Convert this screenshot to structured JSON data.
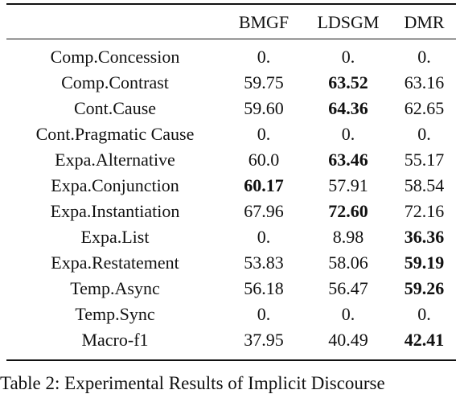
{
  "table": {
    "headers": [
      "",
      "BMGF",
      "LDSGM",
      "DMR"
    ],
    "rows": [
      {
        "label": "Comp.Concession",
        "values": [
          "0.",
          "0.",
          "0."
        ],
        "bold": -1
      },
      {
        "label": "Comp.Contrast",
        "values": [
          "59.75",
          "63.52",
          "63.16"
        ],
        "bold": 1
      },
      {
        "label": "Cont.Cause",
        "values": [
          "59.60",
          "64.36",
          "62.65"
        ],
        "bold": 1
      },
      {
        "label": "Cont.Pragmatic Cause",
        "values": [
          "0.",
          "0.",
          "0."
        ],
        "bold": -1
      },
      {
        "label": "Expa.Alternative",
        "values": [
          "60.0",
          "63.46",
          "55.17"
        ],
        "bold": 1
      },
      {
        "label": "Expa.Conjunction",
        "values": [
          "60.17",
          "57.91",
          "58.54"
        ],
        "bold": 0
      },
      {
        "label": "Expa.Instantiation",
        "values": [
          "67.96",
          "72.60",
          "72.16"
        ],
        "bold": 1
      },
      {
        "label": "Expa.List",
        "values": [
          "0.",
          "8.98",
          "36.36"
        ],
        "bold": 2
      },
      {
        "label": "Expa.Restatement",
        "values": [
          "53.83",
          "58.06",
          "59.19"
        ],
        "bold": 2
      },
      {
        "label": "Temp.Async",
        "values": [
          "56.18",
          "56.47",
          "59.26"
        ],
        "bold": 2
      },
      {
        "label": "Temp.Sync",
        "values": [
          "0.",
          "0.",
          "0."
        ],
        "bold": -1
      },
      {
        "label": "Macro-f1",
        "values": [
          "37.95",
          "40.49",
          "42.41"
        ],
        "bold": 2
      }
    ]
  },
  "caption": "Table 2:  Experimental Results of Implicit Discourse"
}
